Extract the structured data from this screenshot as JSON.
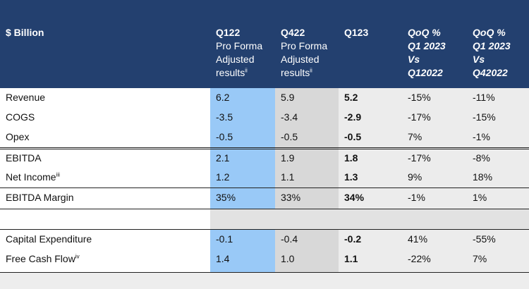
{
  "header": {
    "metric": "$ Billion",
    "q122": {
      "title": "Q122",
      "sub1": "Pro Forma",
      "sub2": "Adjusted",
      "sub3": "results",
      "note": "ii"
    },
    "q422": {
      "title": "Q422",
      "sub1": "Pro Forma",
      "sub2": "Adjusted",
      "sub3": "results",
      "note": "ii"
    },
    "q123": {
      "title": "Q123"
    },
    "qoq1": {
      "title": "QoQ %",
      "sub1": "Q1 2023",
      "sub2": "Vs",
      "sub3": "Q12022"
    },
    "qoq2": {
      "title": "QoQ %",
      "sub1": "Q1 2023",
      "sub2": "Vs",
      "sub3": "Q42022"
    }
  },
  "rows": [
    {
      "label": "Revenue",
      "note": "",
      "q122": "6.2",
      "q422": "5.9",
      "q123": "5.2",
      "qoq1": "-15%",
      "qoq2": "-11%"
    },
    {
      "label": "COGS",
      "note": "",
      "q122": "-3.5",
      "q422": "-3.4",
      "q123": "-2.9",
      "qoq1": "-17%",
      "qoq2": "-15%"
    },
    {
      "label": "Opex",
      "note": "",
      "q122": "-0.5",
      "q422": "-0.5",
      "q123": "-0.5",
      "qoq1": "7%",
      "qoq2": "-1%"
    },
    {
      "label": "EBITDA",
      "note": "",
      "q122": "2.1",
      "q422": "1.9",
      "q123": "1.8",
      "qoq1": "-17%",
      "qoq2": "-8%"
    },
    {
      "label": "Net Income",
      "note": "iii",
      "q122": "1.2",
      "q422": "1.1",
      "q123": "1.3",
      "qoq1": "9%",
      "qoq2": "18%"
    },
    {
      "label": "EBITDA Margin",
      "note": "",
      "q122": "35%",
      "q422": "33%",
      "q123": "34%",
      "qoq1": "-1%",
      "qoq2": "1%"
    },
    {
      "label": "Capital Expenditure",
      "note": "",
      "q122": "-0.1",
      "q422": "-0.4",
      "q123": "-0.2",
      "qoq1": "41%",
      "qoq2": "-55%"
    },
    {
      "label": "Free Cash Flow",
      "note": "iv",
      "q122": "1.4",
      "q422": "1.0",
      "q123": "1.1",
      "qoq1": "-22%",
      "qoq2": "7%"
    }
  ],
  "colors": {
    "header_bg": "#23406f",
    "q122_col": "#99c9f7",
    "q422_col": "#d8d8d8",
    "rest_col": "#ececec"
  }
}
